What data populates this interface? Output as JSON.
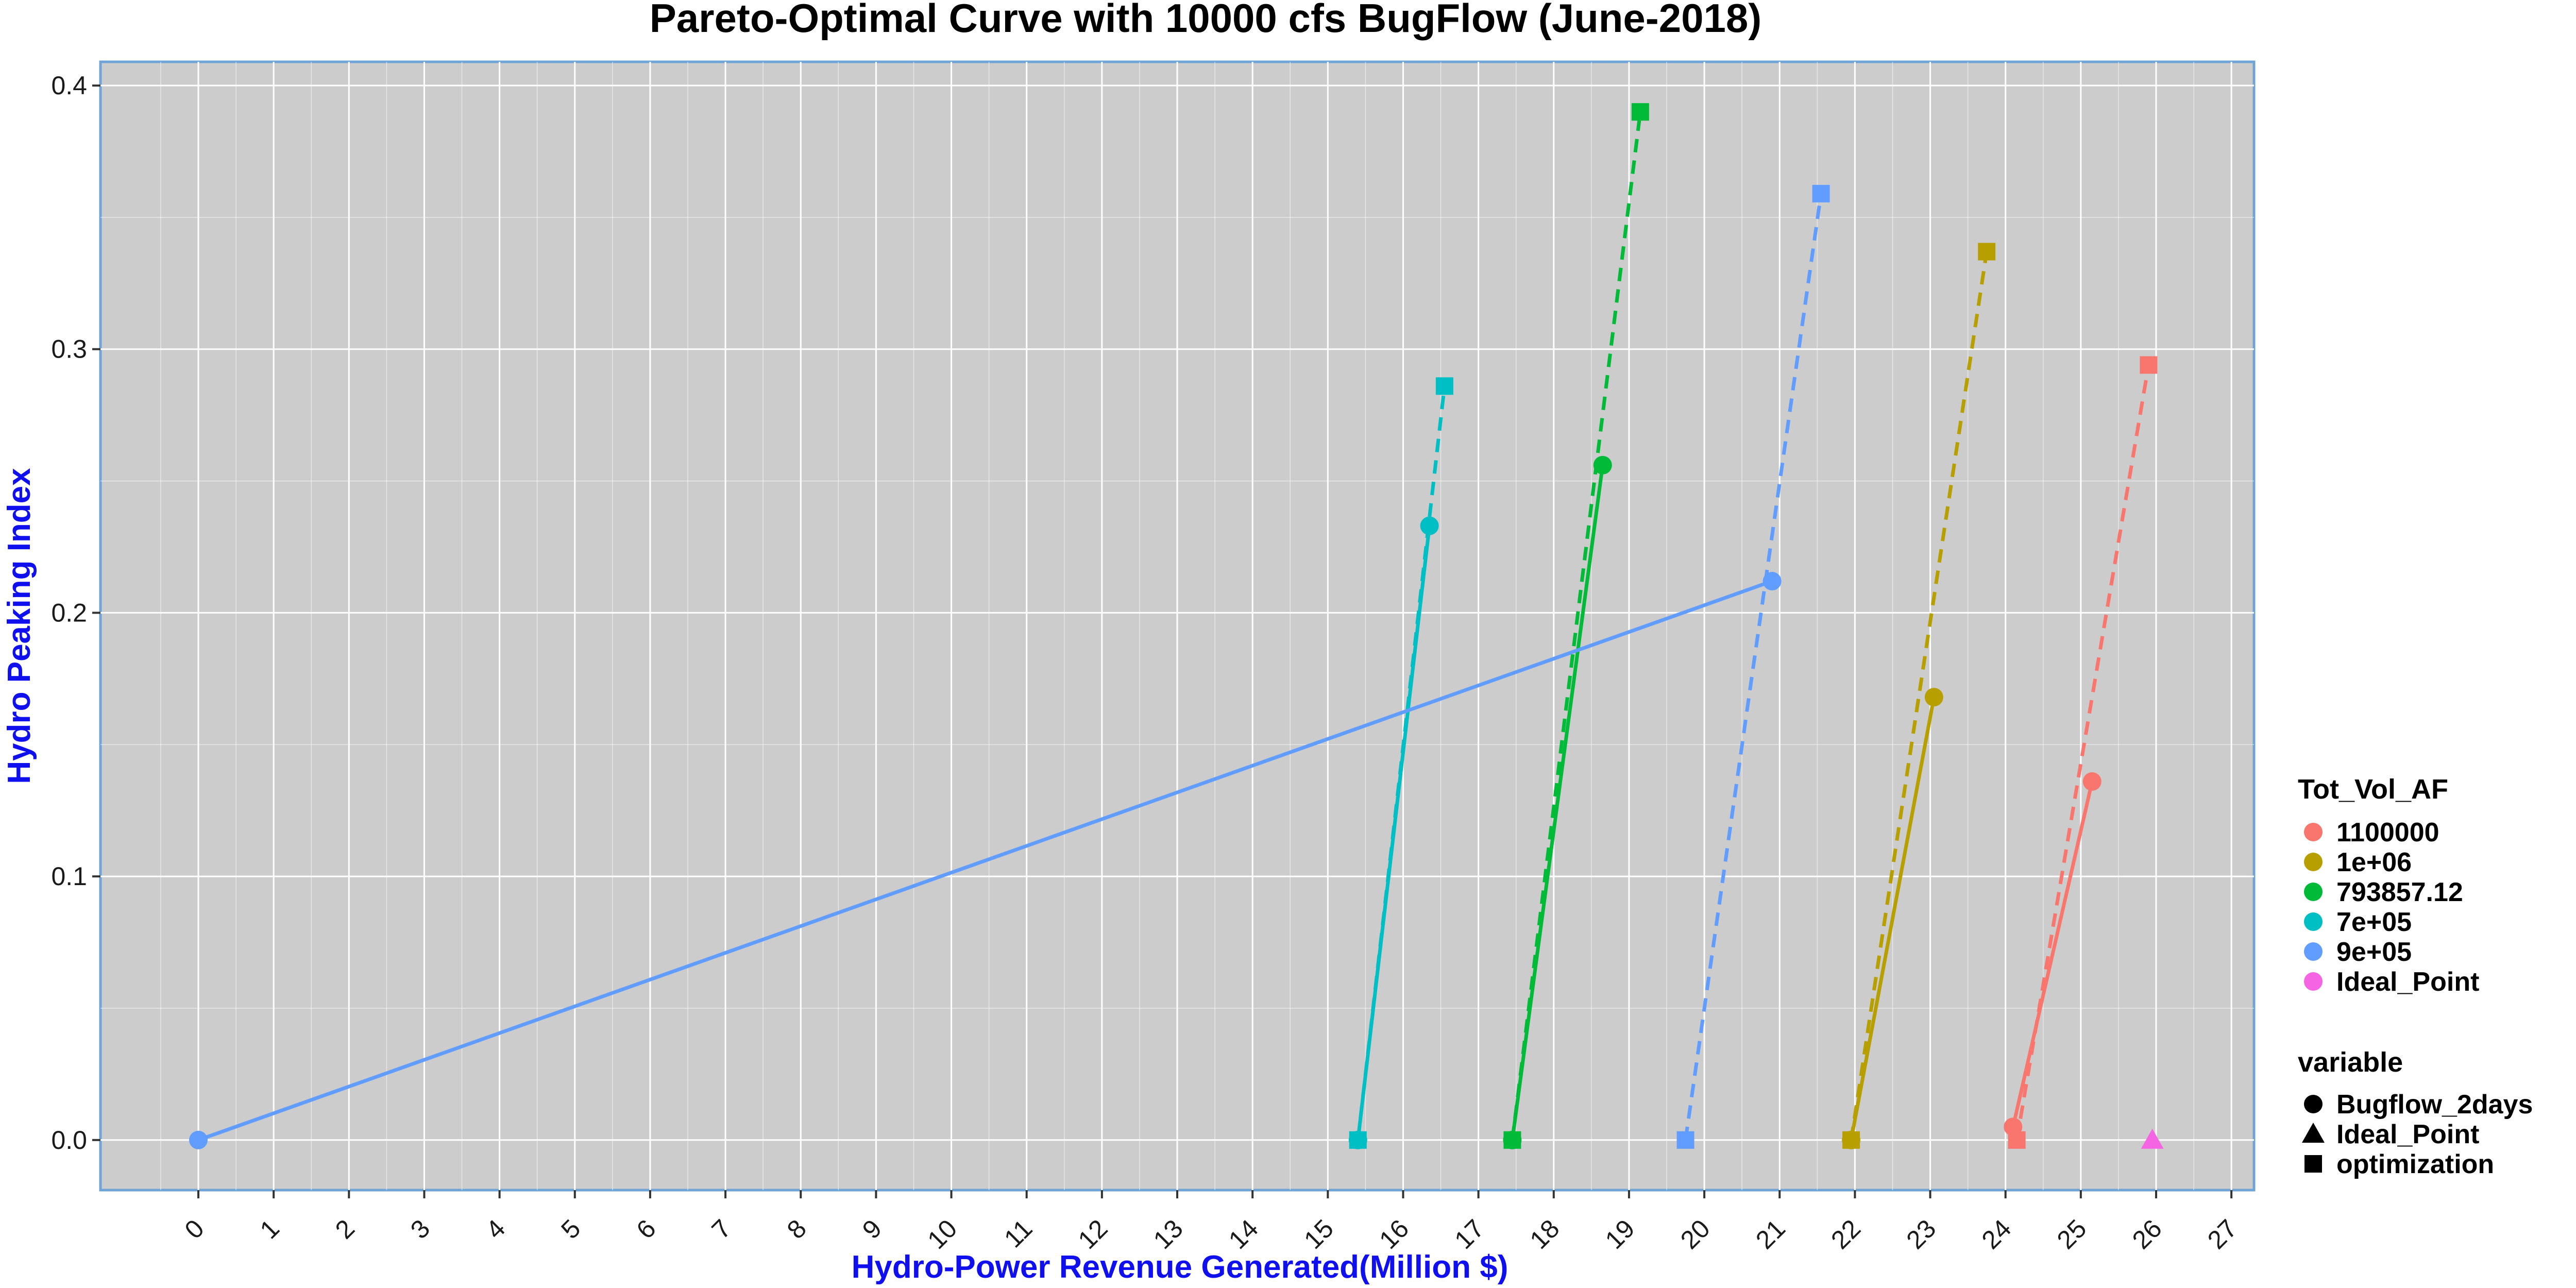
{
  "chart_data": {
    "type": "line",
    "title": "Pareto-Optimal Curve with 10000 cfs BugFlow (June-2018)",
    "xlabel": "Hydro-Power Revenue Generated(Million $)",
    "ylabel": "Hydro Peaking Index",
    "xlim": [
      -1.3,
      27.3
    ],
    "ylim": [
      -0.019,
      0.409
    ],
    "x_ticks": [
      0,
      1,
      2,
      3,
      4,
      5,
      6,
      7,
      8,
      9,
      10,
      11,
      12,
      13,
      14,
      15,
      16,
      17,
      18,
      19,
      20,
      21,
      22,
      23,
      24,
      25,
      26,
      27
    ],
    "x_tick_labels": [
      "0",
      "1",
      "2",
      "3",
      "4",
      "5",
      "6",
      "7",
      "8",
      "9",
      "10",
      "11",
      "12",
      "13",
      "14",
      "15",
      "16",
      "17",
      "18",
      "19",
      "20",
      "21",
      "22",
      "23",
      "24",
      "25",
      "26",
      "27"
    ],
    "y_ticks": [
      0.0,
      0.1,
      0.2,
      0.3,
      0.4
    ],
    "y_tick_labels": [
      "0.0",
      "0.1",
      "0.2",
      "0.3",
      "0.4"
    ],
    "grid": true,
    "legend_placement": "right",
    "legend_color_title": "Tot_Vol_AF",
    "legend_shape_title": "variable",
    "color_legend": [
      {
        "label": "1100000",
        "color": "#F8766D"
      },
      {
        "label": "1e+06",
        "color": "#B79F00"
      },
      {
        "label": "793857.12",
        "color": "#00BA38"
      },
      {
        "label": "7e+05",
        "color": "#00BFC4"
      },
      {
        "label": "9e+05",
        "color": "#619CFF"
      },
      {
        "label": "Ideal_Point",
        "color": "#F564E3"
      }
    ],
    "shape_legend": [
      {
        "label": "Bugflow_2days",
        "shape": "circle"
      },
      {
        "label": "Ideal_Point",
        "shape": "triangle"
      },
      {
        "label": "optimization",
        "shape": "square"
      }
    ],
    "series": [
      {
        "name": "1100000",
        "color": "#F8766D",
        "bugflow": [
          [
            24.1,
            0.005
          ],
          [
            25.15,
            0.136
          ]
        ],
        "optimization": [
          [
            24.15,
            0.0
          ],
          [
            25.9,
            0.294
          ]
        ]
      },
      {
        "name": "1e+06",
        "color": "#B79F00",
        "bugflow": [
          [
            21.95,
            0.0
          ],
          [
            23.05,
            0.168
          ]
        ],
        "optimization": [
          [
            21.95,
            0.0
          ],
          [
            23.75,
            0.337
          ]
        ]
      },
      {
        "name": "793857.12",
        "color": "#00BA38",
        "bugflow": [
          [
            17.45,
            0.0
          ],
          [
            18.65,
            0.256
          ]
        ],
        "optimization": [
          [
            17.45,
            0.0
          ],
          [
            19.15,
            0.39
          ]
        ]
      },
      {
        "name": "7e+05",
        "color": "#00BFC4",
        "bugflow": [
          [
            15.4,
            0.0
          ],
          [
            16.35,
            0.233
          ]
        ],
        "optimization": [
          [
            15.4,
            0.0
          ],
          [
            16.55,
            0.286
          ]
        ]
      },
      {
        "name": "9e+05",
        "color": "#619CFF",
        "bugflow": [
          [
            0.0,
            0.0
          ],
          [
            20.9,
            0.212
          ]
        ],
        "optimization": [
          [
            19.75,
            0.0
          ],
          [
            21.55,
            0.359
          ]
        ]
      },
      {
        "name": "Ideal_Point",
        "color": "#F564E3",
        "ideal": [
          [
            25.95,
            0.0
          ]
        ]
      }
    ]
  }
}
